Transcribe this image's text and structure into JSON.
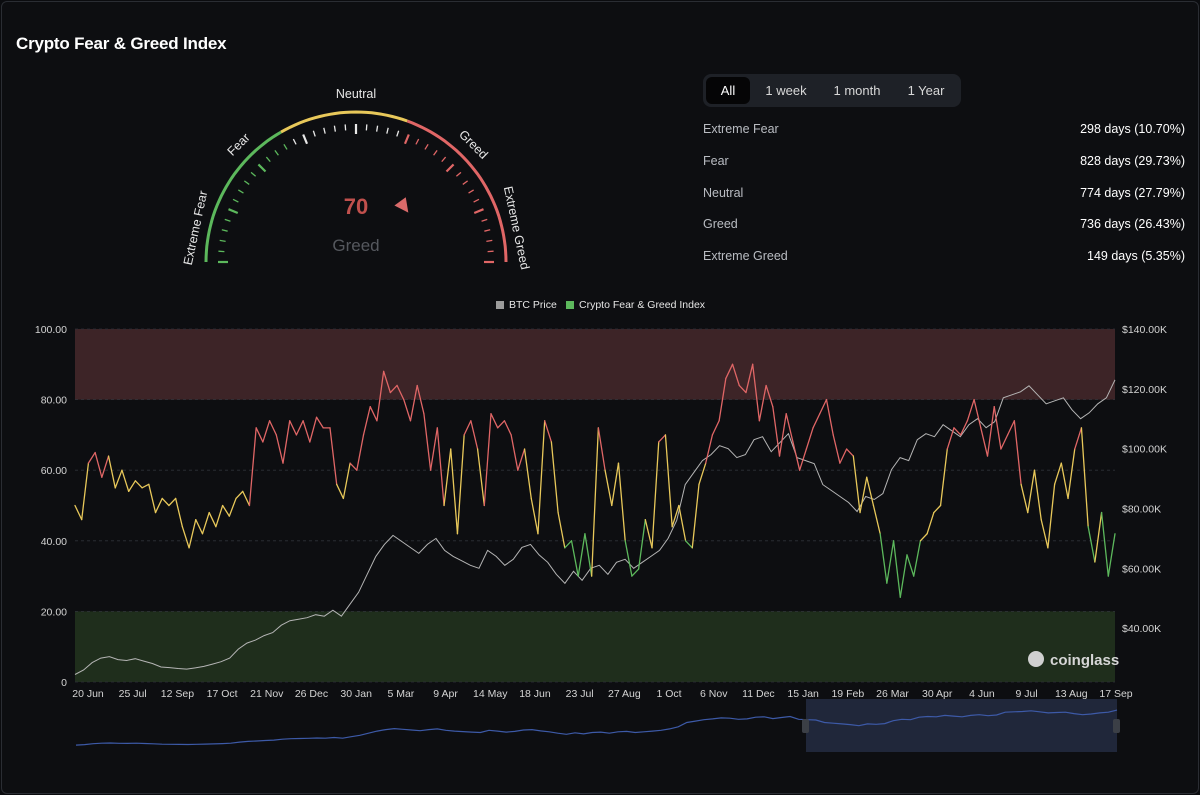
{
  "title": "Crypto Fear & Greed Index",
  "gauge": {
    "value": 70,
    "state": "Greed",
    "labels": [
      "Extreme Fear",
      "Fear",
      "Neutral",
      "Greed",
      "Extreme Greed"
    ],
    "colors": {
      "fear": "#5cb85c",
      "neutral": "#e8c85a",
      "greed": "#e06666",
      "value": "#c0504d"
    }
  },
  "tabs": [
    "All",
    "1 week",
    "1 month",
    "1 Year"
  ],
  "active_tab": "All",
  "stats": [
    {
      "label": "Extreme Fear",
      "value": "298 days (10.70%)"
    },
    {
      "label": "Fear",
      "value": "828 days (29.73%)"
    },
    {
      "label": "Neutral",
      "value": "774 days (27.79%)"
    },
    {
      "label": "Greed",
      "value": "736 days (26.43%)"
    },
    {
      "label": "Extreme Greed",
      "value": "149 days (5.35%)"
    }
  ],
  "watermark": "coinglass",
  "chart_data": {
    "type": "line",
    "legend": [
      "BTC Price",
      "Crypto Fear & Greed Index"
    ],
    "legend_position": "top-center",
    "left_axis": {
      "ticks": [
        "0",
        "20.00",
        "40.00",
        "60.00",
        "80.00",
        "100.00"
      ],
      "range": [
        0,
        100
      ]
    },
    "right_axis": {
      "ticks": [
        "$40.00K",
        "$60.00K",
        "$80.00K",
        "$100.00K",
        "$120.00K",
        "$140.00K"
      ],
      "range": [
        22000,
        140000
      ]
    },
    "x_ticks": [
      "20 Jun",
      "25 Jul",
      "12 Sep",
      "17 Oct",
      "21 Nov",
      "26 Dec",
      "30 Jan",
      "5 Mar",
      "9 Apr",
      "14 May",
      "18 Jun",
      "23 Jul",
      "27 Aug",
      "1 Oct",
      "6 Nov",
      "11 Dec",
      "15 Jan",
      "19 Feb",
      "26 Mar",
      "30 Apr",
      "4 Jun",
      "9 Jul",
      "13 Aug",
      "17 Sep"
    ],
    "zones": [
      {
        "name": "extreme-greed",
        "from": 80,
        "to": 100,
        "color": "#3d2427"
      },
      {
        "name": "extreme-fear",
        "from": 0,
        "to": 20,
        "color": "#1f2e1c"
      }
    ],
    "series": [
      {
        "name": "Crypto Fear & Greed Index",
        "values": [
          50,
          46,
          62,
          65,
          58,
          64,
          55,
          60,
          54,
          57,
          55,
          56,
          48,
          52,
          50,
          52,
          44,
          38,
          46,
          42,
          48,
          44,
          50,
          47,
          52,
          54,
          50,
          72,
          68,
          74,
          70,
          62,
          74,
          70,
          74,
          68,
          75,
          72,
          72,
          56,
          52,
          62,
          60,
          70,
          78,
          74,
          88,
          82,
          84,
          80,
          74,
          84,
          76,
          60,
          72,
          50,
          66,
          42,
          70,
          74,
          66,
          50,
          76,
          72,
          74,
          70,
          60,
          66,
          52,
          42,
          74,
          68,
          48,
          38,
          40,
          30,
          42,
          30,
          72,
          60,
          50,
          62,
          40,
          30,
          32,
          46,
          38,
          68,
          70,
          44,
          50,
          40,
          38,
          56,
          62,
          70,
          74,
          86,
          90,
          84,
          82,
          90,
          74,
          84,
          78,
          64,
          76,
          68,
          60,
          66,
          72,
          76,
          80,
          70,
          62,
          66,
          64,
          48,
          58,
          50,
          42,
          28,
          40,
          24,
          36,
          30,
          40,
          42,
          48,
          50,
          66,
          72,
          70,
          74,
          80,
          72,
          64,
          78,
          66,
          70,
          74,
          56,
          48,
          60,
          46,
          38,
          56,
          62,
          52,
          66,
          72,
          44,
          34,
          48,
          30,
          42
        ]
      },
      {
        "name": "BTC Price",
        "values": [
          24500,
          26000,
          28500,
          30000,
          30500,
          29500,
          29200,
          29800,
          29000,
          28200,
          27000,
          26800,
          26500,
          26300,
          26700,
          27200,
          28000,
          28800,
          30000,
          33000,
          35000,
          36000,
          37500,
          38500,
          41000,
          42500,
          43000,
          43500,
          44500,
          44000,
          46000,
          44000,
          48000,
          52000,
          58000,
          64000,
          68000,
          71000,
          69000,
          67000,
          65000,
          68000,
          70000,
          66000,
          64000,
          62500,
          61000,
          60000,
          66000,
          64000,
          61000,
          63000,
          67000,
          68000,
          64500,
          62000,
          58000,
          55000,
          59000,
          56000,
          60000,
          61000,
          58000,
          62000,
          63000,
          60000,
          62000,
          64000,
          66000,
          70000,
          76000,
          88000,
          92000,
          96000,
          98000,
          101000,
          100000,
          97000,
          98000,
          103000,
          104000,
          99000,
          102000,
          105000,
          97000,
          96000,
          95000,
          88000,
          86000,
          84000,
          82000,
          79000,
          84000,
          83000,
          85000,
          93000,
          97000,
          96000,
          103000,
          105000,
          104000,
          108000,
          106000,
          104000,
          108000,
          110000,
          107000,
          109000,
          117000,
          118000,
          119000,
          121000,
          118000,
          115000,
          116000,
          117000,
          113000,
          110000,
          112000,
          115000,
          117000,
          123000
        ]
      }
    ]
  }
}
